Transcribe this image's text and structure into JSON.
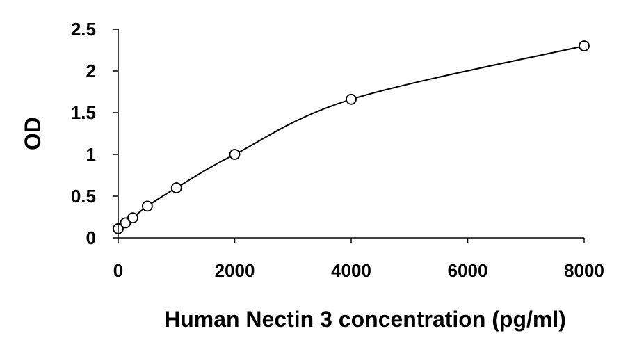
{
  "chart_data": {
    "type": "scatter",
    "title": "",
    "xlabel": "Human Nectin 3 concentration (pg/ml)",
    "ylabel": "OD",
    "xlim": [
      0,
      8000
    ],
    "ylim": [
      0,
      2.5
    ],
    "x_ticks": [
      "0",
      "2000",
      "4000",
      "6000",
      "8000"
    ],
    "y_ticks": [
      "0",
      "0.5",
      "1",
      "1.5",
      "2",
      "2.5"
    ],
    "grid": false,
    "legend": "none",
    "trendline": "smooth fitted curve",
    "series": [
      {
        "x": [
          0,
          125,
          250,
          500,
          1000,
          2000,
          4000,
          8000
        ],
        "y": [
          0.11,
          0.18,
          0.24,
          0.38,
          0.6,
          1.0,
          1.66,
          2.3
        ],
        "marker": "open-circle",
        "color": "#000000"
      }
    ]
  }
}
